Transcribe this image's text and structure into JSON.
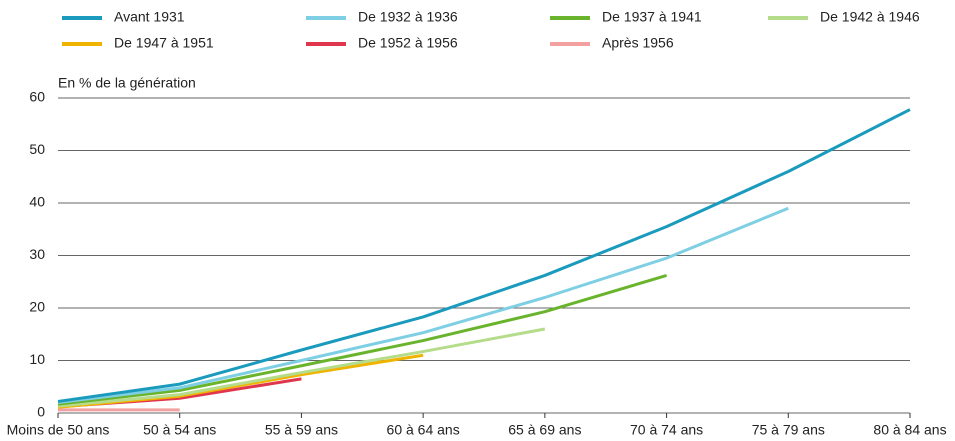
{
  "chart_data": {
    "type": "line",
    "y_label": "En % de la génération",
    "categories": [
      "Moins de 50 ans",
      "50 à 54 ans",
      "55 à 59 ans",
      "60 à 64 ans",
      "65 à 69 ans",
      "70 à 74 ans",
      "75 à 79 ans",
      "80 à 84 ans"
    ],
    "series": [
      {
        "name": "Avant 1931",
        "color": "#1a9bbd",
        "values": [
          2.2,
          5.5,
          12,
          18.3,
          26.2,
          35.5,
          46,
          57.8
        ]
      },
      {
        "name": "De 1932 à 1936",
        "color": "#7ecfe3",
        "values": [
          2,
          4.8,
          10,
          15.3,
          22,
          29.5,
          39,
          null
        ]
      },
      {
        "name": "De 1937 à 1941",
        "color": "#6ab42d",
        "values": [
          1.7,
          4.3,
          9,
          13.8,
          19.3,
          26.2,
          null,
          null
        ]
      },
      {
        "name": "De 1942 à 1946",
        "color": "#b5dc8a",
        "values": [
          1.3,
          3.5,
          7.7,
          11.7,
          16,
          null,
          null,
          null
        ]
      },
      {
        "name": "De 1947 à 1951",
        "color": "#f0b400",
        "values": [
          1.1,
          3.2,
          7.3,
          11,
          null,
          null,
          null,
          null
        ]
      },
      {
        "name": "De 1952 à 1956",
        "color": "#e0364d",
        "values": [
          1.2,
          2.8,
          6.5,
          null,
          null,
          null,
          null,
          null
        ]
      },
      {
        "name": "Après 1956",
        "color": "#f2a0a0",
        "values": [
          0.6,
          0.6,
          null,
          null,
          null,
          null,
          null,
          null
        ]
      }
    ],
    "ylim": [
      0,
      60
    ],
    "yticks": [
      0,
      10,
      20,
      30,
      40,
      50,
      60
    ],
    "grid": true
  }
}
